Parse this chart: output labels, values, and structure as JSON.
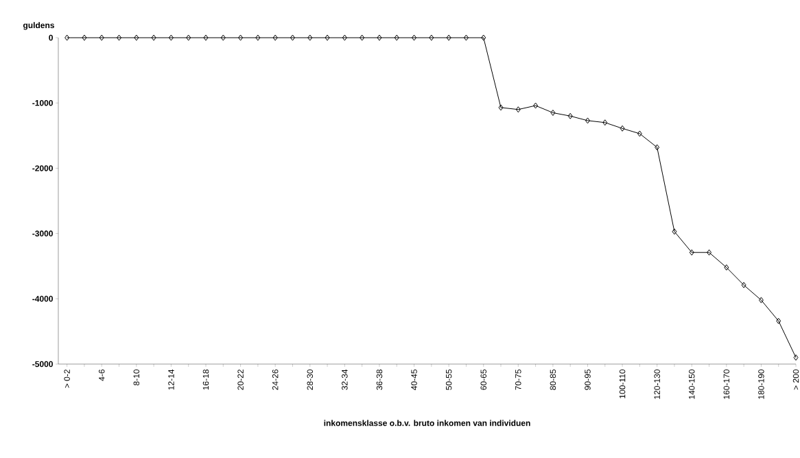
{
  "chart_data": {
    "type": "line",
    "ylabel": "guldens",
    "xlabel": "inkomensklasse o.b.v. bruto inkomen van individuen",
    "categories": [
      "> 0-2",
      null,
      "4-6",
      null,
      "8-10",
      null,
      "12-14",
      null,
      "16-18",
      null,
      "20-22",
      null,
      "24-26",
      null,
      "28-30",
      null,
      "32-34",
      null,
      "36-38",
      null,
      "40-45",
      null,
      "50-55",
      null,
      "60-65",
      null,
      "70-75",
      null,
      "80-85",
      null,
      "90-95",
      null,
      "100-110",
      null,
      "120-130",
      null,
      "140-150",
      null,
      "160-170",
      null,
      "180-190",
      null,
      "> 200"
    ],
    "values": [
      0,
      0,
      0,
      0,
      0,
      0,
      0,
      0,
      0,
      0,
      0,
      0,
      0,
      0,
      0,
      0,
      0,
      0,
      0,
      0,
      0,
      0,
      0,
      0,
      0,
      -1070,
      -1100,
      -1040,
      -1150,
      -1200,
      -1270,
      -1300,
      -1390,
      -1470,
      -1680,
      -2970,
      -3290,
      -3290,
      -3520,
      -3790,
      -4020,
      -4340,
      -4900
    ],
    "color": "#000000",
    "marker": "diamond",
    "line_style": "solid",
    "ylim": [
      -5000,
      0
    ],
    "yticks": [
      -5000,
      -4000,
      -3000,
      -2000,
      -1000,
      0
    ]
  }
}
